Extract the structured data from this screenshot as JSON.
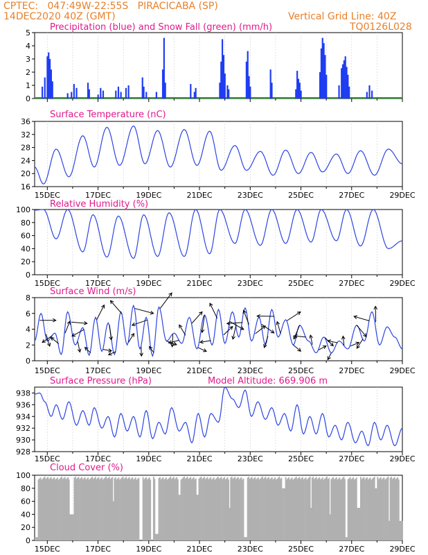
{
  "header": {
    "line1": "CPTEC:   047:49W-22:55S   PIRACICABA (SP)",
    "line2": "14DEC2020 40Z (GMT)",
    "grid_note": "Vertical Grid Line: 40Z",
    "code": "TQ0126L028"
  },
  "x_ticks": [
    "15DEC",
    "17DEC",
    "19DEC",
    "21DEC",
    "23DEC",
    "25DEC",
    "27DEC",
    "29DEC"
  ],
  "colors": {
    "rain": "#1f3df2",
    "snow": "#22a02a",
    "line": "#2b44e0",
    "arrow": "#000000",
    "cloud": "#b0b0b0",
    "title": "#e0198c",
    "header": "#e8802a"
  },
  "chart_data": [
    {
      "id": "precip",
      "type": "bar",
      "title": "Precipitation (blue) and Snow Fall (green) (mm/h)",
      "ylim": [
        0,
        5
      ],
      "yticks": [
        0,
        1,
        2,
        3,
        4,
        5
      ],
      "x_range_days": [
        14.5,
        29.0
      ],
      "events": [
        [
          14.8,
          0.9
        ],
        [
          14.9,
          1.6
        ],
        [
          15.0,
          3.2
        ],
        [
          15.05,
          3.5
        ],
        [
          15.1,
          3.0
        ],
        [
          15.15,
          2.2
        ],
        [
          15.2,
          1.3
        ],
        [
          15.8,
          0.4
        ],
        [
          15.95,
          0.5
        ],
        [
          16.05,
          1.1
        ],
        [
          16.15,
          0.8
        ],
        [
          16.6,
          1.2
        ],
        [
          16.65,
          0.7
        ],
        [
          17.0,
          0.3
        ],
        [
          17.1,
          0.8
        ],
        [
          17.2,
          0.6
        ],
        [
          17.7,
          0.6
        ],
        [
          17.8,
          0.9
        ],
        [
          17.9,
          0.5
        ],
        [
          18.1,
          0.8
        ],
        [
          18.2,
          1.0
        ],
        [
          18.75,
          1.6
        ],
        [
          18.8,
          0.9
        ],
        [
          18.9,
          0.5
        ],
        [
          19.3,
          0.5
        ],
        [
          19.55,
          2.2
        ],
        [
          19.6,
          4.6
        ],
        [
          19.65,
          1.2
        ],
        [
          20.65,
          1.1
        ],
        [
          20.8,
          0.5
        ],
        [
          20.85,
          0.8
        ],
        [
          21.8,
          1.2
        ],
        [
          21.85,
          2.8
        ],
        [
          21.9,
          4.5
        ],
        [
          21.95,
          3.3
        ],
        [
          22.0,
          1.9
        ],
        [
          22.1,
          1.0
        ],
        [
          22.15,
          0.7
        ],
        [
          22.85,
          2.8
        ],
        [
          22.9,
          3.6
        ],
        [
          22.95,
          1.7
        ],
        [
          23.0,
          0.9
        ],
        [
          23.8,
          2.2
        ],
        [
          23.85,
          1.2
        ],
        [
          24.8,
          0.7
        ],
        [
          24.85,
          2.1
        ],
        [
          24.9,
          1.5
        ],
        [
          24.95,
          1.2
        ],
        [
          25.0,
          0.6
        ],
        [
          25.75,
          2.0
        ],
        [
          25.8,
          3.8
        ],
        [
          25.85,
          4.6
        ],
        [
          25.9,
          4.2
        ],
        [
          25.95,
          3.3
        ],
        [
          26.0,
          1.8
        ],
        [
          26.5,
          1.0
        ],
        [
          26.6,
          2.3
        ],
        [
          26.65,
          2.6
        ],
        [
          26.7,
          2.9
        ],
        [
          26.75,
          3.2
        ],
        [
          26.8,
          2.4
        ],
        [
          26.85,
          1.8
        ],
        [
          26.9,
          0.9
        ],
        [
          27.6,
          0.5
        ],
        [
          27.7,
          1.0
        ],
        [
          27.8,
          0.6
        ]
      ]
    },
    {
      "id": "temperature",
      "type": "line",
      "title": "Surface Temperature (nC)",
      "ylim": [
        16,
        36
      ],
      "yticks": [
        16,
        20,
        24,
        28,
        32,
        36
      ],
      "daily": [
        {
          "day": 14.5,
          "val": 22
        },
        {
          "day": 14.85,
          "val": 16.8
        },
        {
          "day": 15.35,
          "val": 27.5
        },
        {
          "day": 15.85,
          "val": 19
        },
        {
          "day": 16.4,
          "val": 31.6
        },
        {
          "day": 16.85,
          "val": 22
        },
        {
          "day": 17.35,
          "val": 34.2
        },
        {
          "day": 17.85,
          "val": 22.5
        },
        {
          "day": 18.4,
          "val": 34.6
        },
        {
          "day": 18.85,
          "val": 23
        },
        {
          "day": 19.35,
          "val": 33.2
        },
        {
          "day": 19.85,
          "val": 22
        },
        {
          "day": 20.4,
          "val": 33.5
        },
        {
          "day": 20.9,
          "val": 22.5
        },
        {
          "day": 21.4,
          "val": 33
        },
        {
          "day": 21.85,
          "val": 21
        },
        {
          "day": 22.4,
          "val": 28.6
        },
        {
          "day": 22.85,
          "val": 21
        },
        {
          "day": 23.4,
          "val": 26.8
        },
        {
          "day": 23.9,
          "val": 19.5
        },
        {
          "day": 24.4,
          "val": 27.2
        },
        {
          "day": 24.9,
          "val": 20
        },
        {
          "day": 25.4,
          "val": 26.5
        },
        {
          "day": 25.85,
          "val": 20.5
        },
        {
          "day": 26.4,
          "val": 26
        },
        {
          "day": 26.85,
          "val": 20
        },
        {
          "day": 27.35,
          "val": 27
        },
        {
          "day": 27.9,
          "val": 19.5
        },
        {
          "day": 28.45,
          "val": 27.5
        },
        {
          "day": 29.0,
          "val": 23
        }
      ]
    },
    {
      "id": "humidity",
      "type": "line",
      "title": "Relative Humidity (%)",
      "ylim": [
        0,
        100
      ],
      "yticks": [
        0,
        20,
        40,
        60,
        80,
        100
      ],
      "daily": [
        {
          "day": 14.5,
          "val": 99
        },
        {
          "day": 14.85,
          "val": 100
        },
        {
          "day": 15.35,
          "val": 55
        },
        {
          "day": 15.8,
          "val": 100
        },
        {
          "day": 16.4,
          "val": 35
        },
        {
          "day": 16.8,
          "val": 92
        },
        {
          "day": 17.35,
          "val": 27
        },
        {
          "day": 17.8,
          "val": 90
        },
        {
          "day": 18.4,
          "val": 25
        },
        {
          "day": 18.8,
          "val": 92
        },
        {
          "day": 19.35,
          "val": 28
        },
        {
          "day": 19.8,
          "val": 95
        },
        {
          "day": 20.4,
          "val": 28
        },
        {
          "day": 20.85,
          "val": 100
        },
        {
          "day": 21.4,
          "val": 32
        },
        {
          "day": 21.8,
          "val": 100
        },
        {
          "day": 22.4,
          "val": 48
        },
        {
          "day": 22.8,
          "val": 100
        },
        {
          "day": 23.4,
          "val": 45
        },
        {
          "day": 23.85,
          "val": 100
        },
        {
          "day": 24.4,
          "val": 48
        },
        {
          "day": 24.85,
          "val": 100
        },
        {
          "day": 25.4,
          "val": 50
        },
        {
          "day": 25.8,
          "val": 100
        },
        {
          "day": 26.4,
          "val": 52
        },
        {
          "day": 26.8,
          "val": 100
        },
        {
          "day": 27.35,
          "val": 44
        },
        {
          "day": 27.85,
          "val": 100
        },
        {
          "day": 28.45,
          "val": 40
        },
        {
          "day": 29.0,
          "val": 52
        }
      ]
    },
    {
      "id": "wind",
      "type": "line",
      "title": "Surface Wind (m/s)",
      "ylim": [
        0,
        8
      ],
      "yticks": [
        0,
        2,
        4,
        6,
        8
      ],
      "daily": [
        {
          "day": 14.5,
          "val": 2.5
        },
        {
          "day": 14.75,
          "val": 6
        },
        {
          "day": 15.0,
          "val": 2.5
        },
        {
          "day": 15.3,
          "val": 3.5
        },
        {
          "day": 15.55,
          "val": 0.8
        },
        {
          "day": 15.8,
          "val": 6.2
        },
        {
          "day": 16.1,
          "val": 2
        },
        {
          "day": 16.4,
          "val": 4.2
        },
        {
          "day": 16.65,
          "val": 0.7
        },
        {
          "day": 16.9,
          "val": 5.5
        },
        {
          "day": 17.15,
          "val": 1.2
        },
        {
          "day": 17.4,
          "val": 4.8
        },
        {
          "day": 17.65,
          "val": 0.8
        },
        {
          "day": 17.9,
          "val": 6.2
        },
        {
          "day": 18.15,
          "val": 2
        },
        {
          "day": 18.4,
          "val": 7
        },
        {
          "day": 18.65,
          "val": 1.5
        },
        {
          "day": 18.9,
          "val": 5.5
        },
        {
          "day": 19.15,
          "val": 0.6
        },
        {
          "day": 19.4,
          "val": 6.8
        },
        {
          "day": 19.7,
          "val": 2.5
        },
        {
          "day": 20.0,
          "val": 3.5
        },
        {
          "day": 20.3,
          "val": 2.2
        },
        {
          "day": 20.6,
          "val": 5.5
        },
        {
          "day": 20.9,
          "val": 1.5
        },
        {
          "day": 21.2,
          "val": 5.8
        },
        {
          "day": 21.5,
          "val": 2
        },
        {
          "day": 21.75,
          "val": 6.5
        },
        {
          "day": 22.0,
          "val": 2.2
        },
        {
          "day": 22.3,
          "val": 6.2
        },
        {
          "day": 22.55,
          "val": 3
        },
        {
          "day": 22.8,
          "val": 6.7
        },
        {
          "day": 23.05,
          "val": 2.5
        },
        {
          "day": 23.35,
          "val": 5.5
        },
        {
          "day": 23.6,
          "val": 2
        },
        {
          "day": 23.85,
          "val": 6.5
        },
        {
          "day": 24.1,
          "val": 3
        },
        {
          "day": 24.4,
          "val": 5.2
        },
        {
          "day": 24.7,
          "val": 2
        },
        {
          "day": 24.95,
          "val": 4.5
        },
        {
          "day": 25.3,
          "val": 2.5
        },
        {
          "day": 25.6,
          "val": 1
        },
        {
          "day": 25.9,
          "val": 3
        },
        {
          "day": 26.2,
          "val": 1
        },
        {
          "day": 26.5,
          "val": 2.5
        },
        {
          "day": 26.85,
          "val": 1.5
        },
        {
          "day": 27.2,
          "val": 4.5
        },
        {
          "day": 27.5,
          "val": 2.5
        },
        {
          "day": 27.8,
          "val": 6.2
        },
        {
          "day": 28.1,
          "val": 2
        },
        {
          "day": 28.4,
          "val": 4.3
        },
        {
          "day": 28.7,
          "val": 3
        },
        {
          "day": 29.0,
          "val": 1.5
        }
      ]
    },
    {
      "id": "pressure",
      "type": "line",
      "title": "Surface Pressure (hPa)",
      "subtitle": "Model Altitude: 669.906 m",
      "ylim": [
        928,
        939
      ],
      "yticks": [
        928,
        930,
        932,
        934,
        936,
        938
      ],
      "daily": [
        {
          "day": 14.5,
          "val": 937.8
        },
        {
          "day": 14.7,
          "val": 938
        },
        {
          "day": 14.9,
          "val": 936.5
        },
        {
          "day": 15.15,
          "val": 934
        },
        {
          "day": 15.35,
          "val": 936
        },
        {
          "day": 15.6,
          "val": 933.5
        },
        {
          "day": 15.85,
          "val": 936.5
        },
        {
          "day": 16.15,
          "val": 932.5
        },
        {
          "day": 16.4,
          "val": 935
        },
        {
          "day": 16.65,
          "val": 932.5
        },
        {
          "day": 16.85,
          "val": 935.5
        },
        {
          "day": 17.15,
          "val": 932
        },
        {
          "day": 17.4,
          "val": 934
        },
        {
          "day": 17.65,
          "val": 930.5
        },
        {
          "day": 17.9,
          "val": 934.5
        },
        {
          "day": 18.15,
          "val": 931.5
        },
        {
          "day": 18.4,
          "val": 934
        },
        {
          "day": 18.65,
          "val": 930.5
        },
        {
          "day": 18.9,
          "val": 935
        },
        {
          "day": 19.15,
          "val": 930.2
        },
        {
          "day": 19.4,
          "val": 933
        },
        {
          "day": 19.65,
          "val": 931
        },
        {
          "day": 19.9,
          "val": 935.5
        },
        {
          "day": 20.2,
          "val": 931.5
        },
        {
          "day": 20.45,
          "val": 933
        },
        {
          "day": 20.7,
          "val": 929.5
        },
        {
          "day": 20.95,
          "val": 934.5
        },
        {
          "day": 21.2,
          "val": 930.5
        },
        {
          "day": 21.45,
          "val": 934.5
        },
        {
          "day": 21.75,
          "val": 933
        },
        {
          "day": 22.0,
          "val": 939
        },
        {
          "day": 22.3,
          "val": 937
        },
        {
          "day": 22.55,
          "val": 935.5
        },
        {
          "day": 22.8,
          "val": 938.5
        },
        {
          "day": 23.05,
          "val": 934
        },
        {
          "day": 23.3,
          "val": 936.5
        },
        {
          "day": 23.6,
          "val": 933.5
        },
        {
          "day": 23.85,
          "val": 935.5
        },
        {
          "day": 24.1,
          "val": 932.5
        },
        {
          "day": 24.35,
          "val": 934.5
        },
        {
          "day": 24.6,
          "val": 931.5
        },
        {
          "day": 24.85,
          "val": 936
        },
        {
          "day": 25.1,
          "val": 931
        },
        {
          "day": 25.35,
          "val": 934
        },
        {
          "day": 25.6,
          "val": 931
        },
        {
          "day": 25.85,
          "val": 934.5
        },
        {
          "day": 26.1,
          "val": 930.5
        },
        {
          "day": 26.35,
          "val": 932.5
        },
        {
          "day": 26.6,
          "val": 930
        },
        {
          "day": 26.85,
          "val": 933
        },
        {
          "day": 27.15,
          "val": 929.5
        },
        {
          "day": 27.4,
          "val": 931.5
        },
        {
          "day": 27.65,
          "val": 929
        },
        {
          "day": 27.9,
          "val": 933
        },
        {
          "day": 28.15,
          "val": 930
        },
        {
          "day": 28.4,
          "val": 932.5
        },
        {
          "day": 28.7,
          "val": 929
        },
        {
          "day": 29.0,
          "val": 932
        }
      ]
    },
    {
      "id": "cloud",
      "type": "bar",
      "title": "Cloud Cover (%)",
      "ylim": [
        0,
        100
      ],
      "yticks": [
        0,
        20,
        40,
        60,
        80,
        100
      ],
      "gaps": [
        [
          14.5,
          14.6,
          5
        ],
        [
          15.85,
          16.0,
          40
        ],
        [
          17.55,
          17.6,
          60
        ],
        [
          18.6,
          18.75,
          0
        ],
        [
          19.05,
          19.15,
          0
        ],
        [
          19.25,
          19.35,
          10
        ],
        [
          20.15,
          20.25,
          70
        ],
        [
          20.85,
          20.95,
          70
        ],
        [
          22.15,
          22.2,
          50
        ],
        [
          22.75,
          22.85,
          5
        ],
        [
          24.25,
          24.35,
          80
        ],
        [
          25.35,
          25.4,
          50
        ],
        [
          26.1,
          26.15,
          40
        ],
        [
          26.75,
          26.8,
          5
        ],
        [
          27.2,
          27.3,
          50
        ],
        [
          27.9,
          28.0,
          80
        ],
        [
          28.45,
          28.5,
          30
        ],
        [
          28.85,
          29.0,
          30
        ]
      ],
      "base_level": 95
    }
  ]
}
